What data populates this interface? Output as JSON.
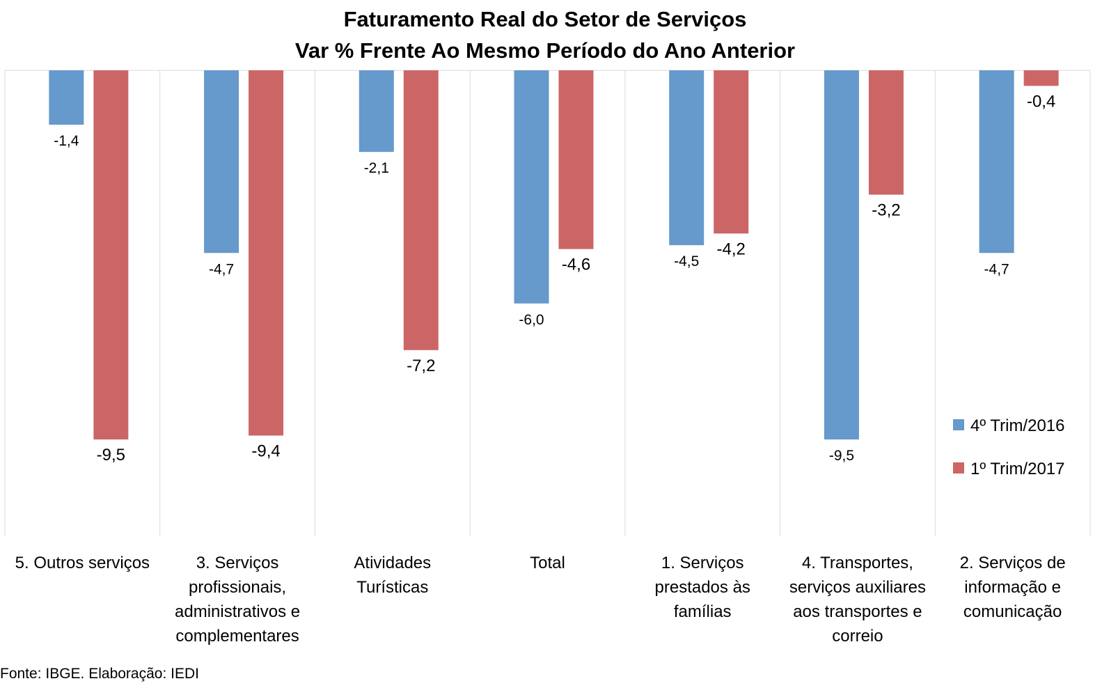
{
  "chart_data": {
    "type": "bar",
    "title": "Faturamento Real do Setor de Serviços",
    "subtitle": "Var % Frente Ao Mesmo Período do Ano Anterior",
    "categories": [
      "5. Outros serviços",
      "3. Serviços profissionais, administrativos e complementares",
      "Atividades Turísticas",
      "Total",
      "1. Serviços prestados às famílias",
      "4. Transportes, serviços auxiliares aos transportes e correio",
      "2. Serviços de informação e comunicação"
    ],
    "category_lines": [
      [
        "5. Outros serviços"
      ],
      [
        "3. Serviços",
        "profissionais,",
        "administrativos e",
        "complementares"
      ],
      [
        "Atividades",
        "Turísticas"
      ],
      [
        "Total"
      ],
      [
        "1. Serviços",
        "prestados às",
        "famílias"
      ],
      [
        "4. Transportes,",
        "serviços auxiliares",
        "aos transportes e",
        "correio"
      ],
      [
        "2. Serviços de",
        "informação e",
        "comunicação"
      ]
    ],
    "series": [
      {
        "name": "4º Trim/2016",
        "color": "#6699CC",
        "values": [
          -1.4,
          -4.7,
          -2.1,
          -6.0,
          -4.5,
          -9.5,
          -4.7
        ],
        "labels": [
          "-1,4",
          "-4,7",
          "-2,1",
          "-6,0",
          "-4,5",
          "-9,5",
          "-4,7"
        ]
      },
      {
        "name": "1º Trim/2017",
        "color": "#CC6666",
        "values": [
          -9.5,
          -9.4,
          -7.2,
          -4.6,
          -4.2,
          -3.2,
          -0.4
        ],
        "labels": [
          "-9,5",
          "-9,4",
          "-7,2",
          "-4,6",
          "-4,2",
          "-3,2",
          "-0,4"
        ]
      }
    ],
    "ylim": [
      -12,
      0
    ],
    "grid": false,
    "legend_position": "right",
    "source": "Fonte: IBGE. Elaboração: IEDI"
  }
}
